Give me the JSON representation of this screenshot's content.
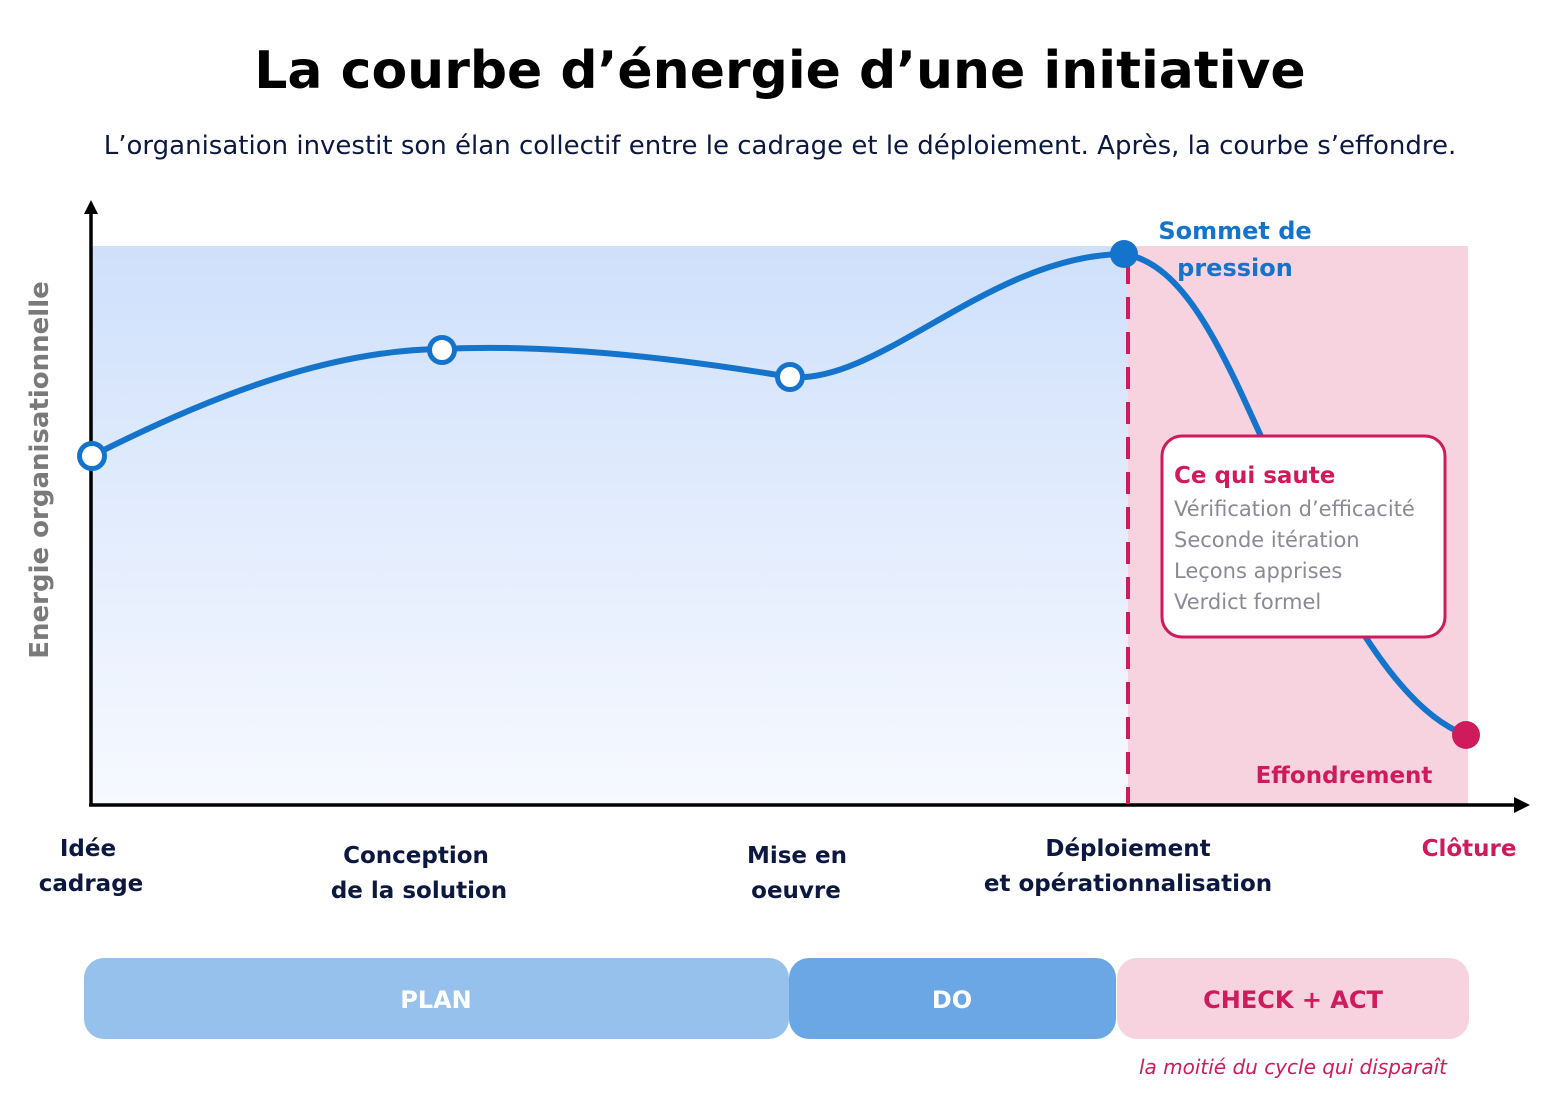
{
  "title": "La courbe d’énergie d’une initiative",
  "subtitle": "L’organisation investit son élan collectif entre le cadrage et le déploiement. Après, la courbe s’effondre.",
  "y_axis_label": "Energie organisationnelle",
  "stages": [
    {
      "lines": [
        "Idée",
        "cadrage"
      ]
    },
    {
      "lines": [
        "Conception",
        "de la solution"
      ]
    },
    {
      "lines": [
        "Mise en",
        "oeuvre"
      ]
    },
    {
      "lines": [
        "Déploiement",
        "et opérationnalisation"
      ]
    },
    {
      "lines": [
        "Clôture"
      ]
    }
  ],
  "peak_label_lines": [
    "Sommet de",
    "pression"
  ],
  "collapse_label": "Effondrement",
  "dropped_box": {
    "title": "Ce qui saute",
    "items": [
      "Vérification d’efficacité",
      "Seconde itération",
      "Leçons apprises",
      "Verdict formel"
    ]
  },
  "phases": [
    {
      "label": "PLAN"
    },
    {
      "label": "DO"
    },
    {
      "label": "CHECK + ACT"
    }
  ],
  "phase_caption": "la moitié du cycle qui disparaît",
  "colors": {
    "curve": "#1474cc",
    "collapse": "#cf1a5c",
    "plan": "#96c1ec",
    "do": "#6aa7e4",
    "check_act": "#f6d3de"
  }
}
